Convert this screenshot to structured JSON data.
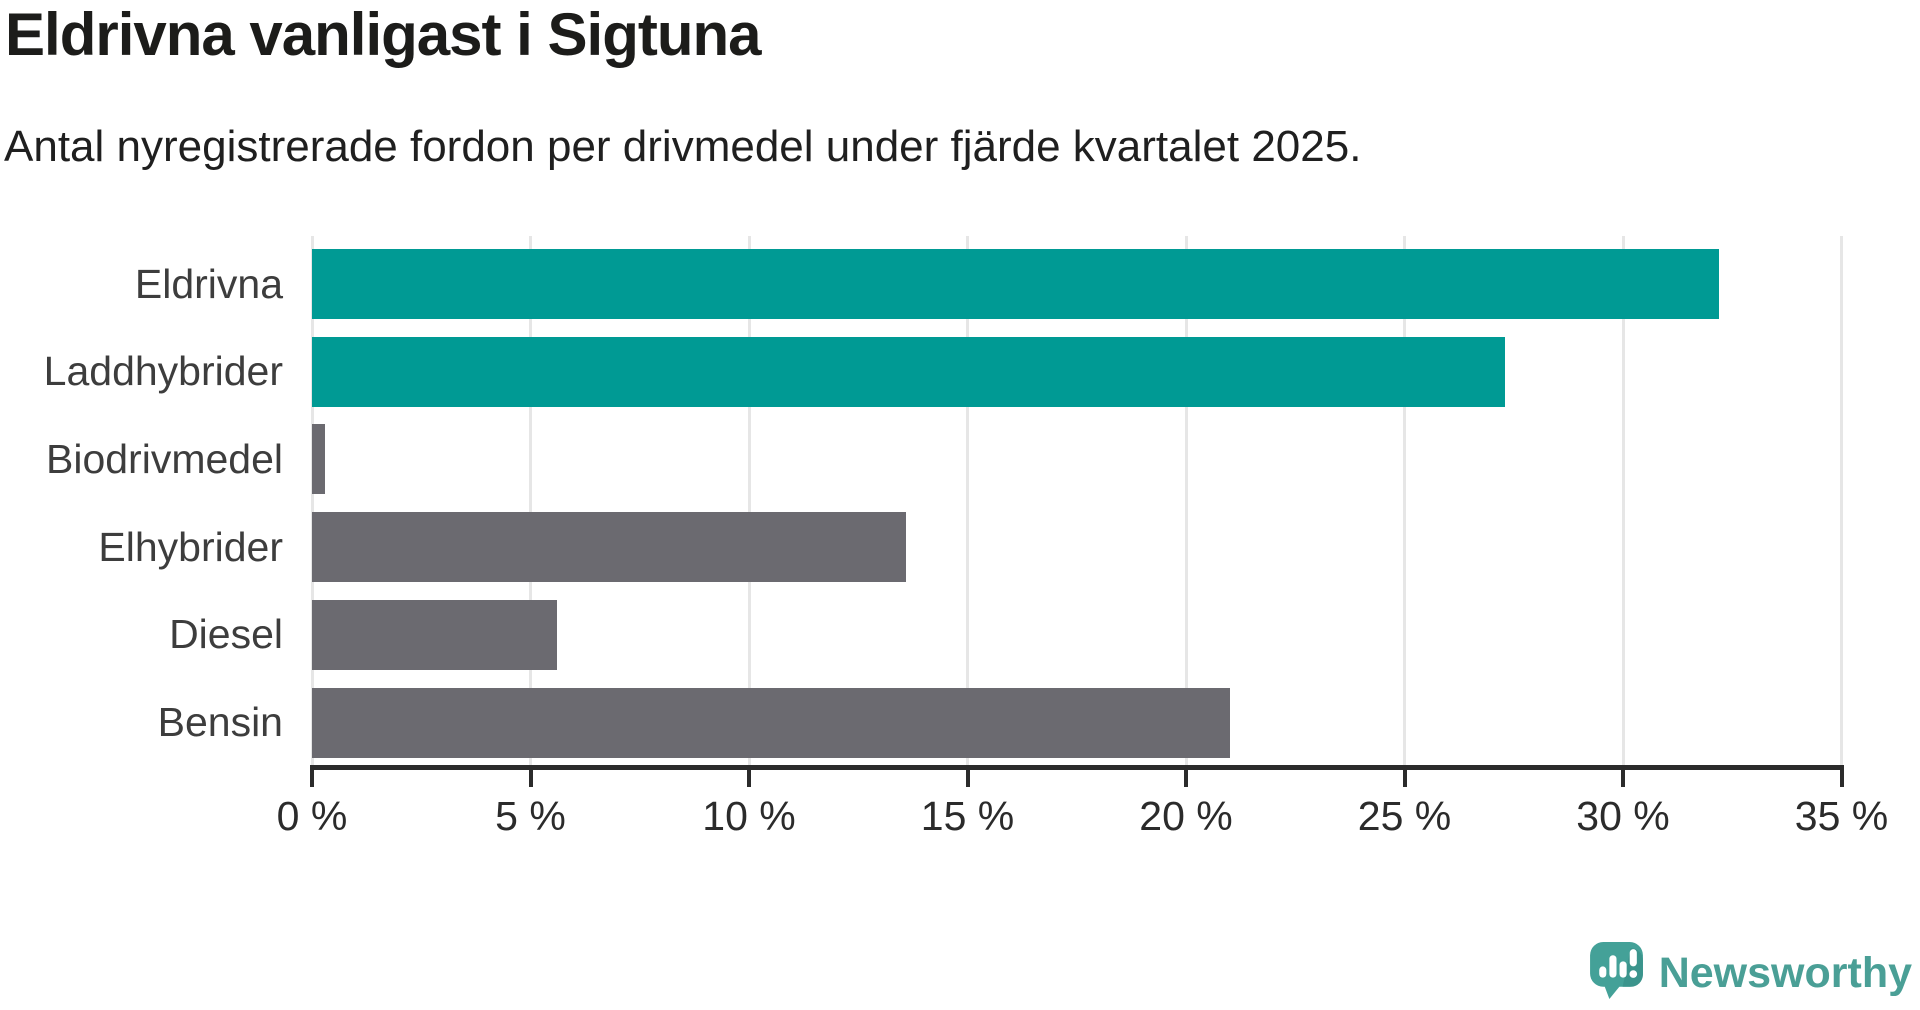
{
  "title": "Eldrivna vanligast i Sigtuna",
  "subtitle": "Antal nyregistrerade fordon per drivmedel under fjärde kvartalet 2025.",
  "chart_data": {
    "type": "bar",
    "orientation": "horizontal",
    "title": "Eldrivna vanligast i Sigtuna",
    "subtitle": "Antal nyregistrerade fordon per drivmedel under fjärde kvartalet 2025.",
    "categories": [
      "Eldrivna",
      "Laddhybrider",
      "Biodrivmedel",
      "Elhybrider",
      "Diesel",
      "Bensin"
    ],
    "values": [
      32.2,
      27.3,
      0.3,
      13.6,
      5.6,
      21.0
    ],
    "unit": "%",
    "xlim": [
      0,
      35
    ],
    "x_ticks": [
      0,
      5,
      10,
      15,
      20,
      25,
      30,
      35
    ],
    "x_tick_labels": [
      "0 %",
      "5 %",
      "10 %",
      "15 %",
      "20 %",
      "25 %",
      "30 %",
      "35 %"
    ],
    "bar_colors": [
      "#009a94",
      "#009a94",
      "#6b6a70",
      "#6b6a70",
      "#6b6a70",
      "#6b6a70"
    ],
    "highlight_color": "#009a94",
    "default_color": "#6b6a70",
    "grid": true,
    "grid_color": "#e6e6e6",
    "axis_color": "#2b2b2b",
    "legend": "none"
  },
  "branding": {
    "logo_text": "Newsworthy",
    "logo_text_color": "#4a9f96",
    "logo_icon": "newsworthy-marker-icon",
    "logo_icon_color": "#44a198"
  }
}
